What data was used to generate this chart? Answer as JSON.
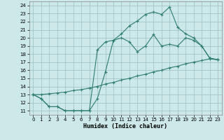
{
  "xlabel": "Humidex (Indice chaleur)",
  "bg_color": "#cce8e8",
  "grid_color": "#9bbfbf",
  "line_color": "#2e7d6e",
  "xlim": [
    -0.5,
    23.5
  ],
  "ylim": [
    10.5,
    24.5
  ],
  "xticks": [
    0,
    1,
    2,
    3,
    4,
    5,
    6,
    7,
    8,
    9,
    10,
    11,
    12,
    13,
    14,
    15,
    16,
    17,
    18,
    19,
    20,
    21,
    22,
    23
  ],
  "yticks": [
    11,
    12,
    13,
    14,
    15,
    16,
    17,
    18,
    19,
    20,
    21,
    22,
    23,
    24
  ],
  "line1_x": [
    0,
    1,
    2,
    3,
    4,
    5,
    6,
    7,
    8,
    9,
    10,
    11,
    12,
    13,
    14,
    15,
    16,
    17,
    18,
    19,
    20,
    21,
    22,
    23
  ],
  "line1_y": [
    13,
    12.5,
    11.5,
    11.5,
    11,
    11,
    11,
    11,
    18.5,
    19.5,
    19.7,
    20.0,
    19.5,
    18.3,
    19.0,
    20.4,
    19.0,
    19.2,
    19.0,
    20.0,
    19.7,
    19.0,
    17.5,
    17.3
  ],
  "line2_x": [
    0,
    1,
    2,
    3,
    4,
    5,
    6,
    7,
    8,
    9,
    10,
    11,
    12,
    13,
    14,
    15,
    16,
    17,
    18,
    19,
    20,
    21,
    22,
    23
  ],
  "line2_y": [
    13,
    12.5,
    11.5,
    11.5,
    11,
    11,
    11,
    11,
    12.5,
    15.8,
    19.7,
    20.5,
    21.5,
    22.1,
    22.9,
    23.2,
    22.9,
    23.8,
    21.3,
    20.5,
    20.0,
    19.0,
    17.5,
    17.3
  ],
  "line3_x": [
    0,
    1,
    2,
    3,
    4,
    5,
    6,
    7,
    8,
    9,
    10,
    11,
    12,
    13,
    14,
    15,
    16,
    17,
    18,
    19,
    20,
    21,
    22,
    23
  ],
  "line3_y": [
    13,
    13.0,
    13.1,
    13.2,
    13.3,
    13.5,
    13.6,
    13.8,
    14.0,
    14.3,
    14.5,
    14.8,
    15.0,
    15.3,
    15.5,
    15.8,
    16.0,
    16.3,
    16.5,
    16.8,
    17.0,
    17.2,
    17.4,
    17.3
  ]
}
